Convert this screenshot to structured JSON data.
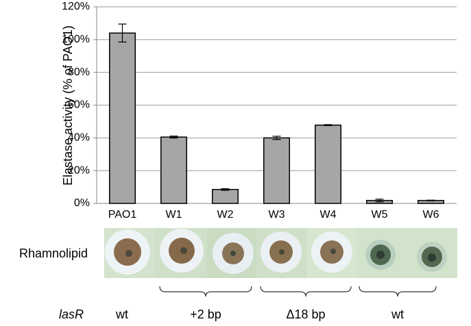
{
  "chart_data": {
    "type": "bar",
    "y_label": "Elastase activity (% of PAO1)",
    "categories": [
      "PAO1",
      "W1",
      "W2",
      "W3",
      "W4",
      "W5",
      "W6"
    ],
    "values": [
      104,
      40.5,
      8.5,
      40,
      47.8,
      1.8,
      1.8
    ],
    "errors": [
      5.5,
      0.6,
      0.5,
      1,
      0.3,
      0.8,
      0.2
    ],
    "color": "#a6a6a6",
    "ylim": [
      0,
      120
    ],
    "yticks": [
      {
        "value": 0,
        "label": "0%"
      },
      {
        "value": 20,
        "label": "20%"
      },
      {
        "value": 40,
        "label": "40%"
      },
      {
        "value": 60,
        "label": "60%"
      },
      {
        "value": 80,
        "label": "80%"
      },
      {
        "value": 100,
        "label": "100%"
      },
      {
        "value": 120,
        "label": "120%"
      }
    ],
    "grid": true
  },
  "rows": {
    "rhamnolipid_label": "Rhamnolipid",
    "lasR_label": "lasR",
    "lasR_groups": [
      "wt",
      "+2 bp",
      "Δ18 bp",
      "wt"
    ]
  }
}
